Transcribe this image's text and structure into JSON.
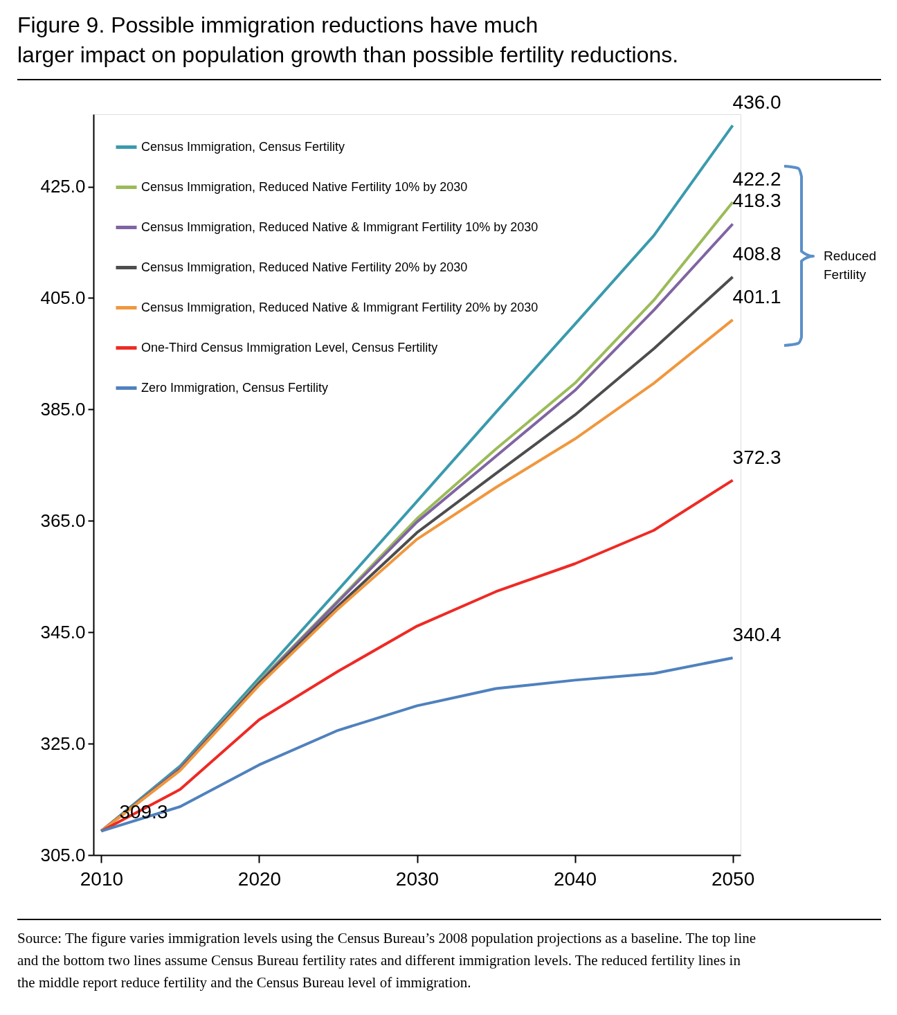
{
  "chart_data": {
    "type": "line",
    "title": "Figure 9. Possible immigration reductions have much\nlarger impact on population growth than possible fertility reductions.",
    "x": [
      2010,
      2015,
      2020,
      2025,
      2030,
      2035,
      2040,
      2045,
      2050
    ],
    "series": [
      {
        "name": "Census Immigration, Census Fertility",
        "color": "#3a9aad",
        "values": [
          309.3,
          321.0,
          336.8,
          352.6,
          368.5,
          384.5,
          400.3,
          416.2,
          436.0
        ],
        "value_labels": [
          "309.3",
          null,
          null,
          null,
          null,
          null,
          null,
          null,
          "436.0"
        ]
      },
      {
        "name": "Census Immigration, Reduced Native Fertility 10% by 2030",
        "color": "#9bbb59",
        "values": [
          309.3,
          320.6,
          336.2,
          350.7,
          365.4,
          377.9,
          389.7,
          404.6,
          422.2
        ],
        "value_labels": [
          null,
          null,
          null,
          null,
          null,
          null,
          null,
          null,
          "422.2"
        ]
      },
      {
        "name": "Census Immigration, Reduced Native & Immigrant Fertility 10% by 2030",
        "color": "#8064a2",
        "values": [
          309.3,
          320.6,
          336.0,
          350.5,
          364.8,
          376.6,
          388.4,
          402.8,
          418.3
        ],
        "value_labels": [
          null,
          null,
          null,
          null,
          null,
          null,
          null,
          null,
          "418.3"
        ]
      },
      {
        "name": "Census Immigration, Reduced Native Fertility 20% by 2030",
        "color": "#4d4d4d",
        "values": [
          309.3,
          320.3,
          335.8,
          349.7,
          362.9,
          373.5,
          384.0,
          395.9,
          408.8
        ],
        "value_labels": [
          null,
          null,
          null,
          null,
          null,
          null,
          null,
          null,
          "408.8"
        ]
      },
      {
        "name": "Census Immigration, Reduced Native & Immigrant Fertility 20% by 2030",
        "color": "#f0973e",
        "values": [
          309.3,
          320.2,
          335.5,
          349.2,
          361.7,
          371.0,
          379.7,
          389.7,
          401.1
        ],
        "value_labels": [
          null,
          null,
          null,
          null,
          null,
          null,
          null,
          null,
          "401.1"
        ]
      },
      {
        "name": "One-Third Census Immigration Level, Census Fertility",
        "color": "#ee2a24",
        "values": [
          309.3,
          316.8,
          329.3,
          338.0,
          346.1,
          352.3,
          357.3,
          363.3,
          372.3
        ],
        "value_labels": [
          null,
          null,
          null,
          null,
          null,
          null,
          null,
          null,
          "372.3"
        ]
      },
      {
        "name": "Zero Immigration, Census Fertility",
        "color": "#4f81bd",
        "values": [
          309.3,
          313.7,
          321.2,
          327.4,
          331.8,
          334.9,
          336.4,
          337.6,
          340.4
        ],
        "value_labels": [
          null,
          null,
          null,
          null,
          null,
          null,
          null,
          null,
          "340.4"
        ]
      }
    ],
    "xlim": [
      2009.5,
      2050.5
    ],
    "xticks": [
      2010,
      2020,
      2030,
      2040,
      2050
    ],
    "ylim": [
      305,
      438
    ],
    "yticks": [
      {
        "value": 305,
        "label": "305.0"
      },
      {
        "value": 325,
        "label": "325.0"
      },
      {
        "value": 345,
        "label": "345.0"
      },
      {
        "value": 365,
        "label": "365.0"
      },
      {
        "value": 385,
        "label": "385.0"
      },
      {
        "value": 405,
        "label": "405.0"
      },
      {
        "value": 425,
        "label": "425.0"
      }
    ],
    "annotations": [
      "Reduced\nFertility",
      "Source: The figure varies immigration levels using the Census Bureau’s 2008 population projections as a baseline. The top line and the bottom two lines assume Census Bureau fertility rates and different immigration levels. The reduced fertility lines in the middle report reduce fertility and the Census Bureau level of immigration."
    ],
    "grid": false,
    "legend": "top left",
    "marker": "none",
    "line_style": "solid"
  }
}
